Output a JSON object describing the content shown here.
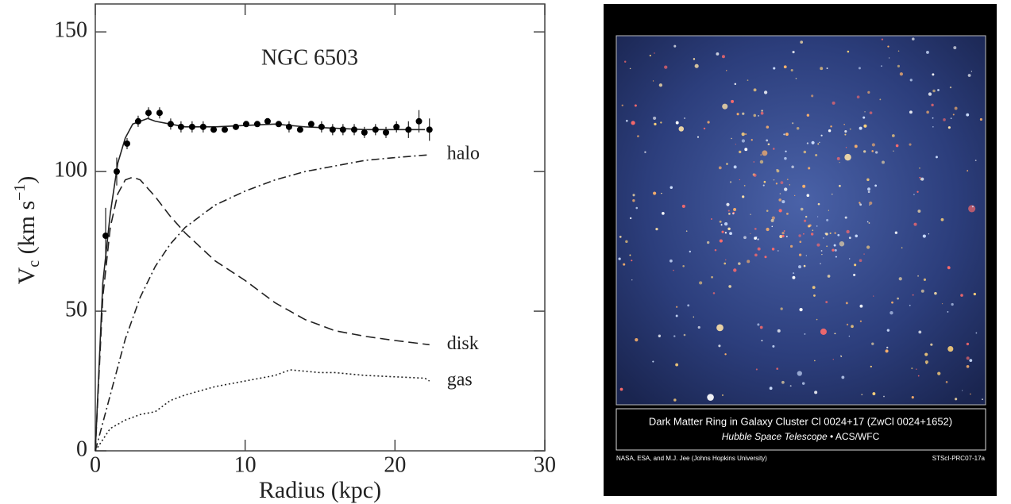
{
  "chart_data": {
    "type": "line",
    "annotation": "NGC 6503",
    "x_label": "Radius (kpc)",
    "y_label": [
      "V",
      "c",
      " (km s",
      "−1",
      ")"
    ],
    "xlim": [
      0,
      30
    ],
    "ylim": [
      0,
      160
    ],
    "xticks": [
      0,
      10,
      20,
      30
    ],
    "yticks": [
      0,
      50,
      100,
      150
    ],
    "color": "#222",
    "series": [
      {
        "dash": "solid",
        "x": [
          0,
          0.5,
          1,
          1.5,
          2,
          2.5,
          3,
          3.5,
          4,
          5,
          6,
          8,
          10,
          12,
          14,
          16,
          18,
          20,
          22
        ],
        "values": [
          0,
          60,
          85,
          103,
          112,
          117,
          118,
          119,
          118,
          117,
          116,
          116,
          116.5,
          117,
          116,
          115.5,
          115,
          115,
          115
        ]
      },
      {
        "name": "halo",
        "dash": "dashdot",
        "x": [
          0,
          1,
          2,
          3,
          4,
          5,
          6,
          8,
          10,
          12,
          14,
          16,
          18,
          20,
          22.3
        ],
        "values": [
          0,
          20,
          40,
          55,
          66,
          74,
          80,
          88,
          93,
          97,
          100,
          102,
          104,
          105,
          106
        ]
      },
      {
        "name": "disk",
        "dash": "dashed",
        "x": [
          0,
          0.5,
          1,
          1.5,
          2,
          2.5,
          3,
          4,
          5,
          6,
          8,
          10,
          12,
          14,
          16,
          18,
          20,
          22.3
        ],
        "values": [
          0,
          55,
          80,
          92,
          97,
          98,
          97,
          91,
          84,
          78,
          68,
          61,
          53,
          47,
          43,
          41,
          39.5,
          38
        ]
      },
      {
        "name": "gas",
        "dash": "dotted",
        "x": [
          0,
          1,
          2,
          3,
          4,
          5,
          6,
          8,
          10,
          12,
          13,
          14,
          15,
          16,
          18,
          20,
          22,
          22.3
        ],
        "values": [
          0,
          8,
          11,
          13,
          14,
          18,
          20,
          23,
          25,
          27,
          29,
          28.5,
          28,
          28,
          27,
          26.5,
          26,
          25
        ]
      }
    ],
    "points": {
      "x": [
        0.69,
        1.43,
        2.12,
        2.86,
        3.55,
        4.29,
        5.03,
        5.72,
        6.46,
        7.2,
        7.9,
        8.64,
        9.38,
        10.07,
        10.81,
        11.5,
        12.24,
        12.93,
        13.67,
        14.41,
        15.1,
        15.84,
        16.53,
        17.28,
        17.96,
        18.7,
        19.4,
        20.1,
        20.9,
        21.6,
        22.3
      ],
      "values": [
        77,
        100,
        110,
        118,
        121,
        121,
        117,
        116,
        116,
        116,
        115,
        115,
        116,
        117,
        117,
        118,
        117,
        116,
        115,
        117,
        116,
        115,
        115,
        115,
        114,
        115,
        114,
        116,
        115,
        118,
        115
      ],
      "errors": [
        10,
        5,
        2,
        2,
        2,
        2,
        2,
        2,
        2,
        2,
        1,
        1,
        1,
        1,
        1,
        1,
        1,
        2,
        1,
        1,
        2,
        2,
        2,
        2,
        2,
        2,
        2,
        2,
        3,
        4,
        4
      ]
    }
  },
  "image_panel": {
    "caption_title": "Dark Matter Ring in Galaxy Cluster Cl 0024+17 (ZwCl 0024+1652)",
    "caption_italic": "Hubble Space Telescope",
    "caption_rest": " • ACS/WFC",
    "credit": "NASA, ESA, and M.J. Jee (Johns Hopkins University)",
    "release_id": "STScI-PRC07-17a"
  }
}
